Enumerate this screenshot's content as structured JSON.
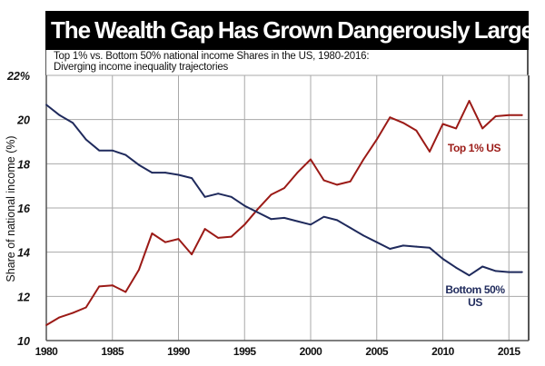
{
  "chart_data": {
    "type": "line",
    "title": "The Wealth Gap Has Grown Dangerously Large...",
    "subtitle_lines": [
      "Top 1% vs. Bottom 50% national income Shares in the US, 1980-2016:",
      "Diverging income inequality trajectories"
    ],
    "xlabel": "",
    "ylabel": "Share of national income (%)",
    "xlim": [
      1980,
      2016
    ],
    "ylim": [
      10,
      22
    ],
    "x_ticks": [
      1980,
      1985,
      1990,
      1995,
      2000,
      2005,
      2010,
      2015
    ],
    "x_tick_labels": [
      "1980",
      "1985",
      "1990",
      "1995",
      "2000",
      "2005",
      "2010",
      "2015"
    ],
    "y_ticks": [
      10,
      12,
      14,
      16,
      18,
      20,
      22
    ],
    "y_tick_labels": [
      "10",
      "12",
      "14",
      "16",
      "18",
      "20",
      "22%"
    ],
    "grid": true,
    "x": [
      1980,
      1981,
      1982,
      1983,
      1984,
      1985,
      1986,
      1987,
      1988,
      1989,
      1990,
      1991,
      1992,
      1993,
      1994,
      1995,
      1996,
      1997,
      1998,
      1999,
      2000,
      2001,
      2002,
      2003,
      2004,
      2005,
      2006,
      2007,
      2008,
      2009,
      2010,
      2011,
      2012,
      2013,
      2014,
      2015,
      2016
    ],
    "series": [
      {
        "name": "Top 1% US",
        "color": "#9b1a16",
        "label_lines": [
          "Top 1% US"
        ],
        "values": [
          10.7,
          11.05,
          11.25,
          11.5,
          12.45,
          12.5,
          12.2,
          13.2,
          14.85,
          14.45,
          14.6,
          13.9,
          15.05,
          14.65,
          14.7,
          15.25,
          15.95,
          16.6,
          16.9,
          17.6,
          18.2,
          17.25,
          17.05,
          17.2,
          18.2,
          19.1,
          20.1,
          19.85,
          19.5,
          18.55,
          19.8,
          19.6,
          20.85,
          19.6,
          20.15,
          20.2,
          20.2
        ]
      },
      {
        "name": "Bottom 50% US",
        "color": "#1f2a5c",
        "label_lines": [
          "Bottom 50%",
          "US"
        ],
        "values": [
          20.67,
          20.2,
          19.85,
          19.1,
          18.6,
          18.6,
          18.4,
          17.95,
          17.6,
          17.6,
          17.5,
          17.35,
          16.5,
          16.65,
          16.5,
          16.1,
          15.8,
          15.5,
          15.55,
          15.4,
          15.25,
          15.6,
          15.45,
          15.1,
          14.75,
          14.45,
          14.15,
          14.3,
          14.25,
          14.2,
          13.7,
          13.3,
          12.95,
          13.35,
          13.15,
          13.1,
          13.1
        ]
      }
    ],
    "legend": "inline labels near line ends"
  }
}
